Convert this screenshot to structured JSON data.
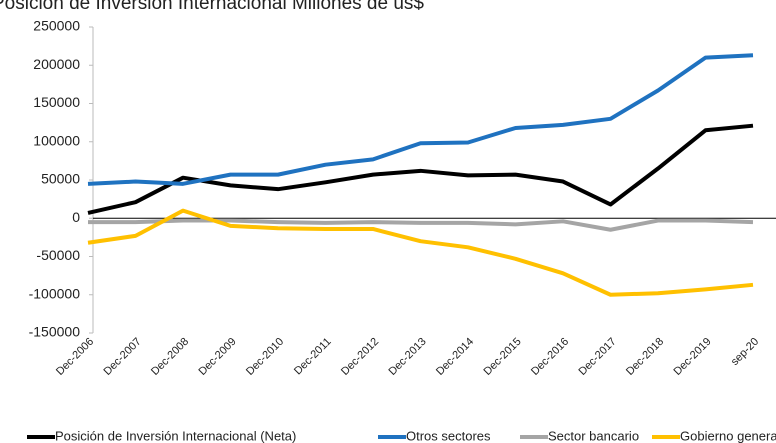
{
  "chart_data": {
    "type": "line",
    "title": "Posición de Inversión Internacional  Millones de us$",
    "categories": [
      "Dec-2006",
      "Dec-2007",
      "Dec-2008",
      "Dec-2009",
      "Dec-2010",
      "Dec-2011",
      "Dec-2012",
      "Dec-2013",
      "Dec-2014",
      "Dec-2015",
      "Dec-2016",
      "Dec-2017",
      "Dec-2018",
      "Dec-2019",
      "sep-20"
    ],
    "series": [
      {
        "name": "Posición de Inversión Internacional (Neta)",
        "color": "#000000",
        "values": [
          7000,
          21000,
          53000,
          43000,
          38000,
          47000,
          57000,
          62000,
          56000,
          57000,
          48000,
          18000,
          65000,
          115000,
          121000
        ]
      },
      {
        "name": "Otros sectores",
        "color": "#1f72c0",
        "values": [
          45000,
          48000,
          45000,
          57000,
          57000,
          70000,
          77000,
          98000,
          99000,
          118000,
          122000,
          130000,
          167000,
          210000,
          213000
        ]
      },
      {
        "name": "Sector bancario",
        "color": "#a5a5a5",
        "values": [
          -5000,
          -5000,
          -3000,
          -3000,
          -5000,
          -6000,
          -5000,
          -6000,
          -6000,
          -8000,
          -4000,
          -15000,
          -3000,
          -3000,
          -5000
        ]
      },
      {
        "name": "Gobierno general",
        "color": "#ffc000",
        "values": [
          -32000,
          -23000,
          10000,
          -10000,
          -13000,
          -14000,
          -14000,
          -30000,
          -38000,
          -53000,
          -72000,
          -100000,
          -98000,
          -93000,
          -87000
        ]
      }
    ],
    "ylim": [
      -150000,
      250000
    ],
    "yticks": [
      -150000,
      -100000,
      -50000,
      0,
      50000,
      100000,
      150000,
      200000,
      250000
    ],
    "legend": "bottom"
  }
}
